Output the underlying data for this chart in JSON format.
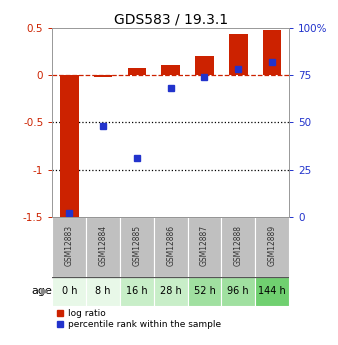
{
  "title": "GDS583 / 19.3.1",
  "samples": [
    "GSM12883",
    "GSM12884",
    "GSM12885",
    "GSM12886",
    "GSM12887",
    "GSM12888",
    "GSM12889"
  ],
  "ages": [
    "0 h",
    "8 h",
    "16 h",
    "28 h",
    "52 h",
    "96 h",
    "144 h"
  ],
  "log_ratio": [
    -1.5,
    -0.02,
    0.07,
    0.1,
    0.2,
    0.43,
    0.47
  ],
  "percentile_rank": [
    2,
    48,
    31,
    68,
    74,
    78,
    82
  ],
  "ylim_left": [
    -1.5,
    0.5
  ],
  "ylim_right": [
    0,
    100
  ],
  "bar_color": "#cc2200",
  "dot_color": "#2233cc",
  "dashed_line_color": "#cc2200",
  "dotted_line_color": "#000000",
  "left_yticks": [
    -1.5,
    -1.0,
    -0.5,
    0.0,
    0.5
  ],
  "left_yticklabels": [
    "-1.5",
    "-1",
    "-0.5",
    "0",
    "0.5"
  ],
  "right_yticks": [
    0,
    25,
    50,
    75,
    100
  ],
  "right_yticklabels": [
    "0",
    "25",
    "50",
    "75",
    "100%"
  ],
  "age_colors": [
    "#e8f8e8",
    "#e8f8e8",
    "#c8eec8",
    "#c8eec8",
    "#a0e0a0",
    "#a0e0a0",
    "#70d070"
  ],
  "header_color": "#c0c0c0",
  "legend_label_ratio": "log ratio",
  "legend_label_pct": "percentile rank within the sample",
  "figsize": [
    3.38,
    3.45
  ],
  "dpi": 100
}
